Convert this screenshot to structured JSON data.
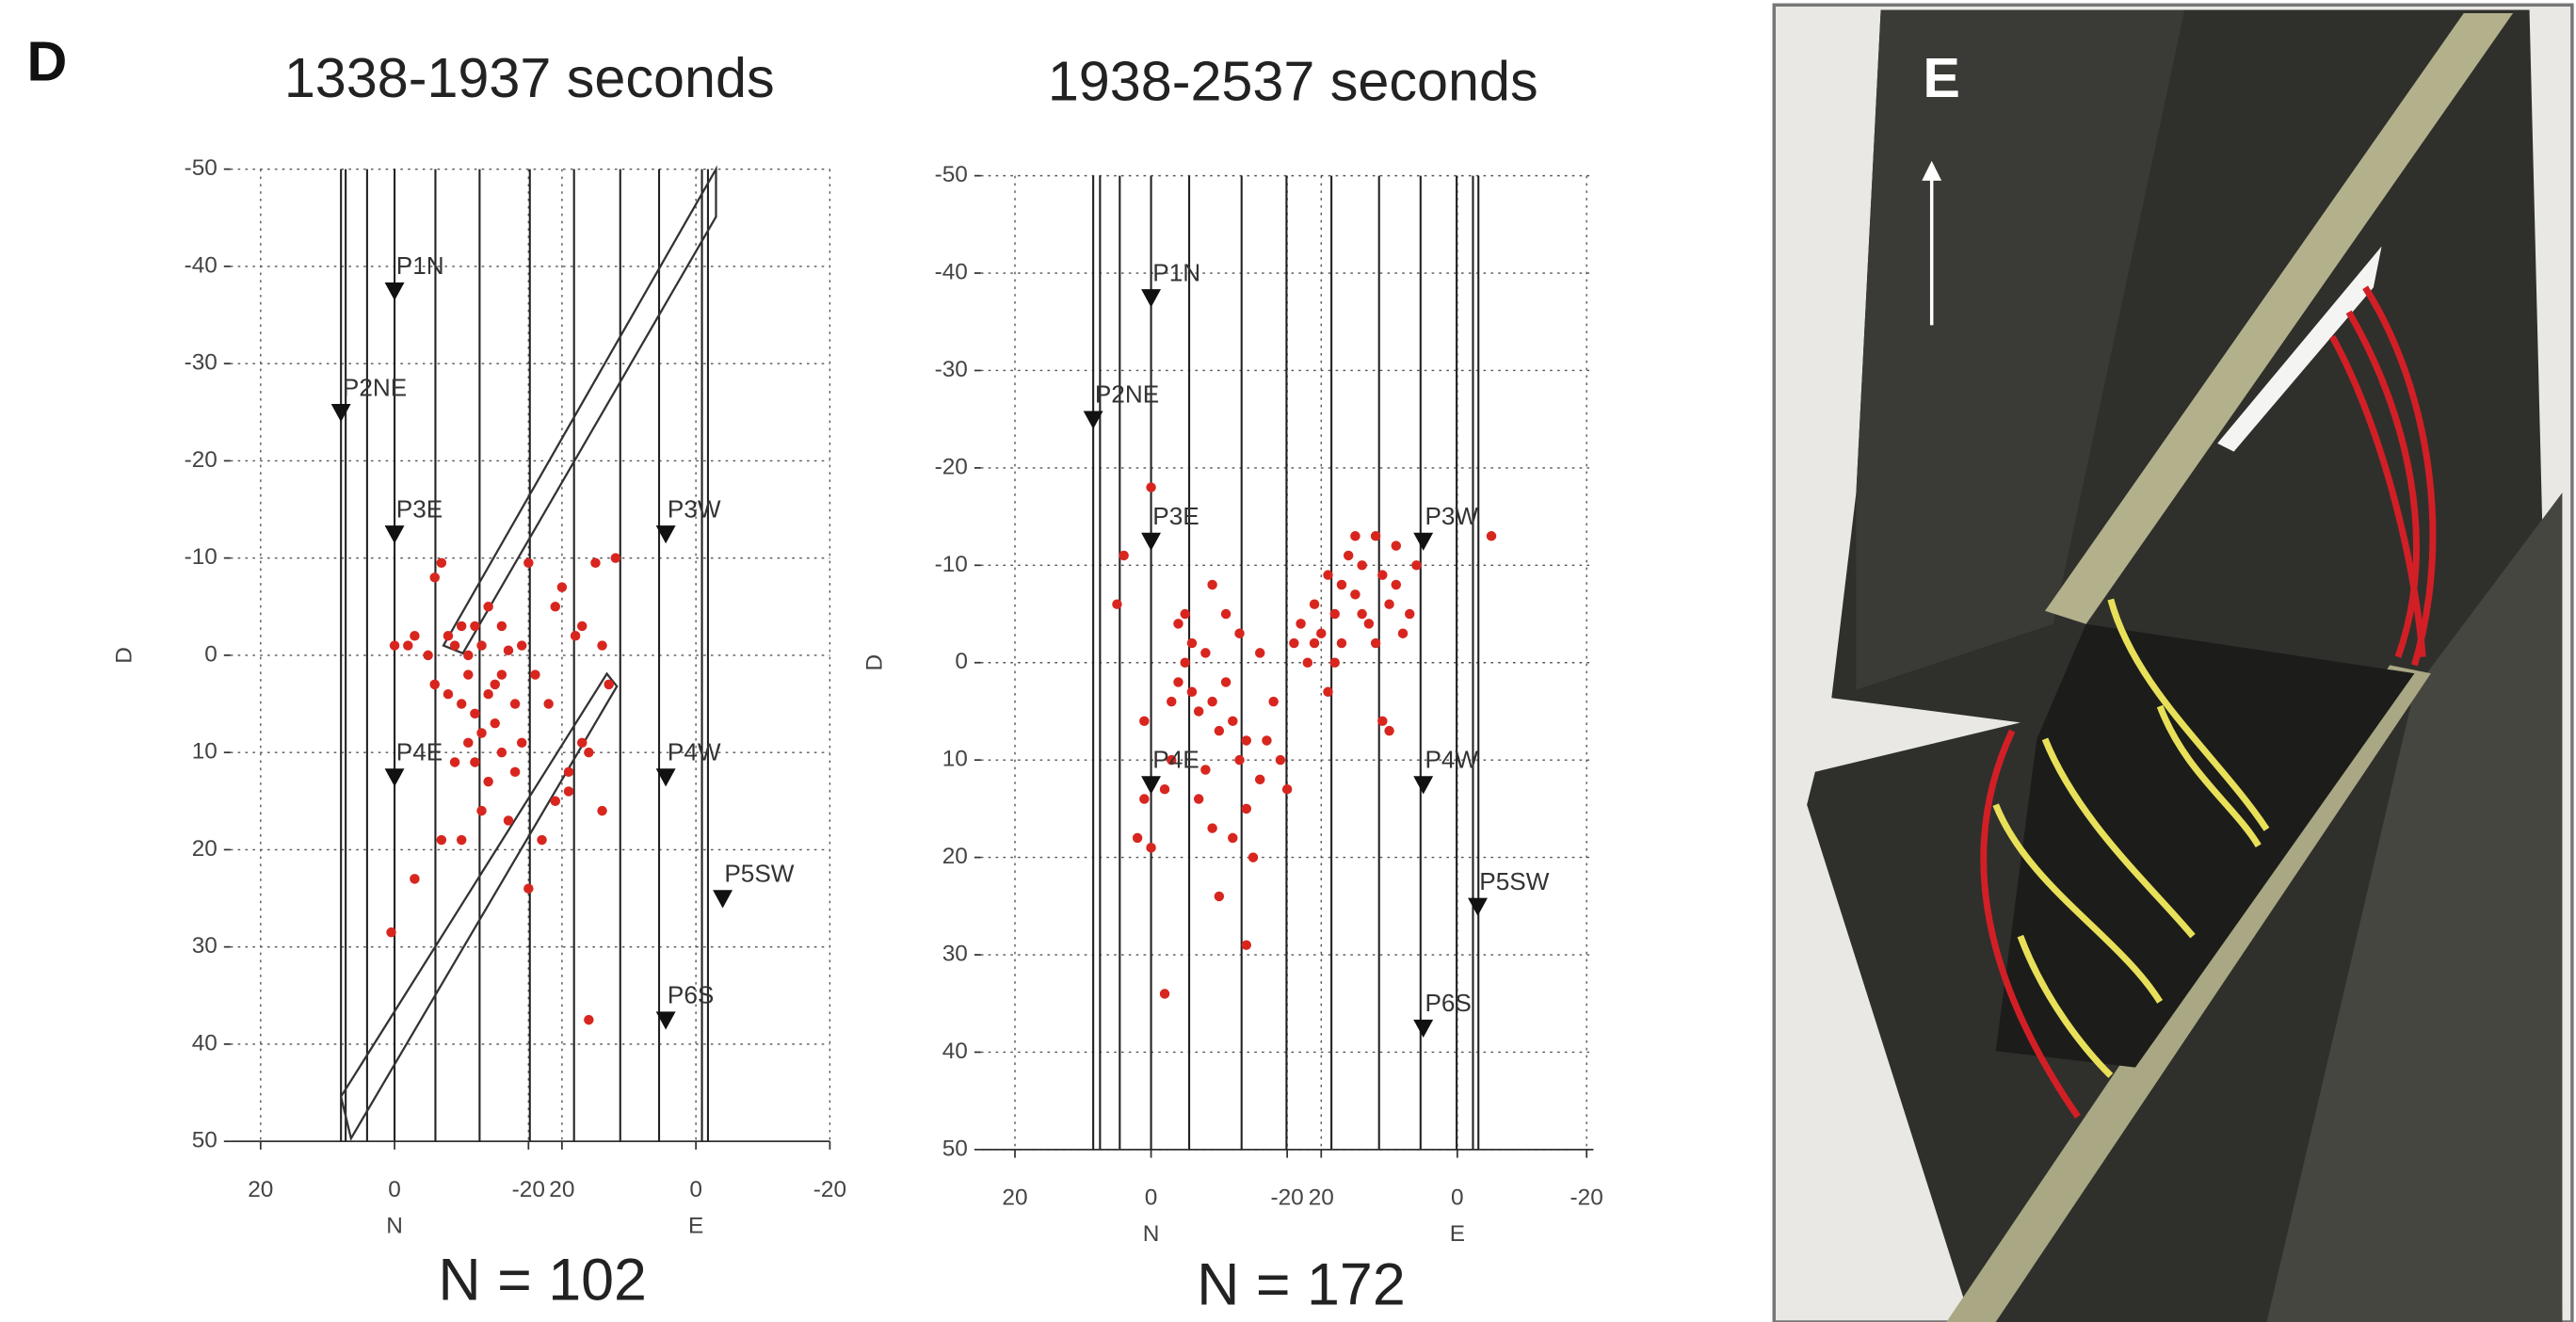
{
  "panel_label": "D",
  "photo": {
    "label": "E"
  },
  "chart_data": [
    {
      "type": "scatter",
      "title": "1338-1937 seconds",
      "n_label": "N = 102",
      "ylabel": "D",
      "color": "#d8261f",
      "xlim": [
        -24.5,
        65
      ],
      "ylim": [
        -50,
        50
      ],
      "xticks": [
        {
          "value": -20,
          "label": "20"
        },
        0,
        {
          "value": 20,
          "label": "-20"
        },
        {
          "value": 25,
          "label": "20"
        },
        {
          "value": 45,
          "label": "0"
        },
        {
          "value": 65,
          "label": "-20"
        }
      ],
      "yticks": [
        -50,
        -40,
        -30,
        -20,
        -10,
        0,
        10,
        20,
        30,
        40,
        50
      ],
      "x_axis_labels": [
        {
          "value": 0,
          "label": "N"
        },
        {
          "value": 45,
          "label": "E"
        }
      ],
      "grid": true,
      "vertical_lines": [
        -8,
        -7.3,
        -4.1,
        0,
        6.1,
        12.7,
        20.2,
        26.8,
        33.7,
        39.5,
        45.9,
        46.8
      ],
      "outlines": [
        {
          "x": [
            7.3,
            48,
            48,
            10.2
          ],
          "y": [
            -1,
            -50,
            -45.1,
            -0.2
          ]
        },
        {
          "x": [
            31.7,
            -8,
            -6.5,
            33.2
          ],
          "y": [
            1.9,
            45.4,
            49.7,
            3.2
          ]
        }
      ],
      "sensors": [
        {
          "label": "P1N",
          "x": 0,
          "y": -37.5
        },
        {
          "label": "P2NE",
          "x": -8,
          "y": -25
        },
        {
          "label": "P3E",
          "x": 0,
          "y": -12.5
        },
        {
          "label": "P3W",
          "x": 40.5,
          "y": -12.5
        },
        {
          "label": "P4E",
          "x": 0,
          "y": 12.5
        },
        {
          "label": "P4W",
          "x": 40.5,
          "y": 12.5
        },
        {
          "label": "P5SW",
          "x": 49,
          "y": 25
        },
        {
          "label": "P6S",
          "x": 40.5,
          "y": 37.5
        }
      ],
      "x": [
        0,
        2,
        -0.5,
        7,
        10,
        3,
        5,
        6,
        8,
        9,
        10,
        11,
        12,
        13,
        14,
        15,
        16,
        17,
        18,
        12,
        14,
        16,
        13,
        10,
        7,
        3,
        19,
        20,
        21,
        20,
        25,
        24,
        28,
        30,
        31,
        32,
        33,
        26,
        28,
        29,
        31,
        24,
        26,
        22,
        18,
        17,
        15,
        13,
        11,
        9,
        8,
        11,
        12,
        14,
        16,
        19,
        6,
        29,
        27,
        23
      ],
      "values": [
        -1,
        -1,
        28.5,
        -9.5,
        -3,
        -2,
        0,
        3,
        4,
        -1,
        5,
        2,
        6,
        -1,
        4,
        7,
        2,
        -0.5,
        5,
        11,
        13,
        10,
        16,
        19,
        19,
        23,
        9,
        24,
        2,
        -9.5,
        -7,
        -5,
        -3,
        -9.5,
        -1,
        3,
        -10,
        14,
        9,
        10,
        16,
        15,
        12,
        19,
        12,
        17,
        3,
        8,
        9,
        11,
        -2,
        0,
        -3,
        -5,
        -3,
        -1,
        -8,
        37.5,
        -2,
        5
      ]
    },
    {
      "type": "scatter",
      "title": "1938-2537 seconds",
      "n_label": "N = 172",
      "ylabel": "D",
      "color": "#d8261f",
      "xlim": [
        -25,
        65
      ],
      "ylim": [
        -50,
        50
      ],
      "xticks": [
        {
          "value": -20,
          "label": "20"
        },
        0,
        {
          "value": 20,
          "label": "-20"
        },
        {
          "value": 25,
          "label": "20"
        },
        {
          "value": 45,
          "label": "0"
        },
        {
          "value": 64,
          "label": "-20"
        }
      ],
      "yticks": [
        -50,
        -40,
        -30,
        -20,
        -10,
        0,
        10,
        20,
        30,
        40,
        50
      ],
      "x_axis_labels": [
        {
          "value": 0,
          "label": "N"
        },
        {
          "value": 45,
          "label": "E"
        }
      ],
      "grid": true,
      "vertical_lines": [
        -8.5,
        -7.5,
        -4.6,
        0,
        5.6,
        13.3,
        19.9,
        26.5,
        33.5,
        39.6,
        44.9,
        47.3,
        48.1
      ],
      "outlines": [],
      "sensors": [
        {
          "label": "P1N",
          "x": 0,
          "y": -37.5
        },
        {
          "label": "P2NE",
          "x": -8.5,
          "y": -25
        },
        {
          "label": "P3E",
          "x": 0,
          "y": -12.5
        },
        {
          "label": "P3W",
          "x": 40,
          "y": -12.5
        },
        {
          "label": "P4E",
          "x": 0,
          "y": 12.5
        },
        {
          "label": "P4W",
          "x": 40,
          "y": 12.5
        },
        {
          "label": "P5SW",
          "x": 48,
          "y": 25
        },
        {
          "label": "P6S",
          "x": 40,
          "y": 37.5
        }
      ],
      "x": [
        -4,
        -5,
        0,
        -1,
        2,
        0,
        -1,
        3,
        4,
        5,
        6,
        7,
        8,
        9,
        10,
        11,
        12,
        13,
        14,
        8,
        7,
        9,
        10,
        12,
        14,
        15,
        14,
        16,
        17,
        19,
        20,
        18,
        16,
        13,
        11,
        9,
        6,
        5,
        4,
        3,
        2,
        -2,
        21,
        22,
        24,
        25,
        26,
        27,
        28,
        29,
        30,
        31,
        32,
        33,
        34,
        35,
        36,
        37,
        38,
        24,
        23,
        27,
        30,
        33,
        28,
        31,
        35,
        34,
        26,
        50,
        39,
        36
      ],
      "values": [
        -11,
        -6,
        -18,
        14,
        34,
        19,
        6,
        4,
        2,
        0,
        3,
        5,
        -1,
        4,
        7,
        2,
        6,
        10,
        8,
        11,
        14,
        17,
        24,
        18,
        15,
        20,
        29,
        12,
        8,
        10,
        13,
        4,
        -1,
        -3,
        -5,
        -8,
        -2,
        -5,
        -4,
        10,
        13,
        18,
        -2,
        -4,
        -6,
        -3,
        -9,
        -5,
        -8,
        -11,
        -7,
        -10,
        -4,
        -2,
        -9,
        -6,
        -12,
        -3,
        -5,
        -2,
        0,
        0,
        -13,
        -13,
        -2,
        -5,
        7,
        6,
        3,
        -13,
        -10,
        -8
      ]
    }
  ]
}
